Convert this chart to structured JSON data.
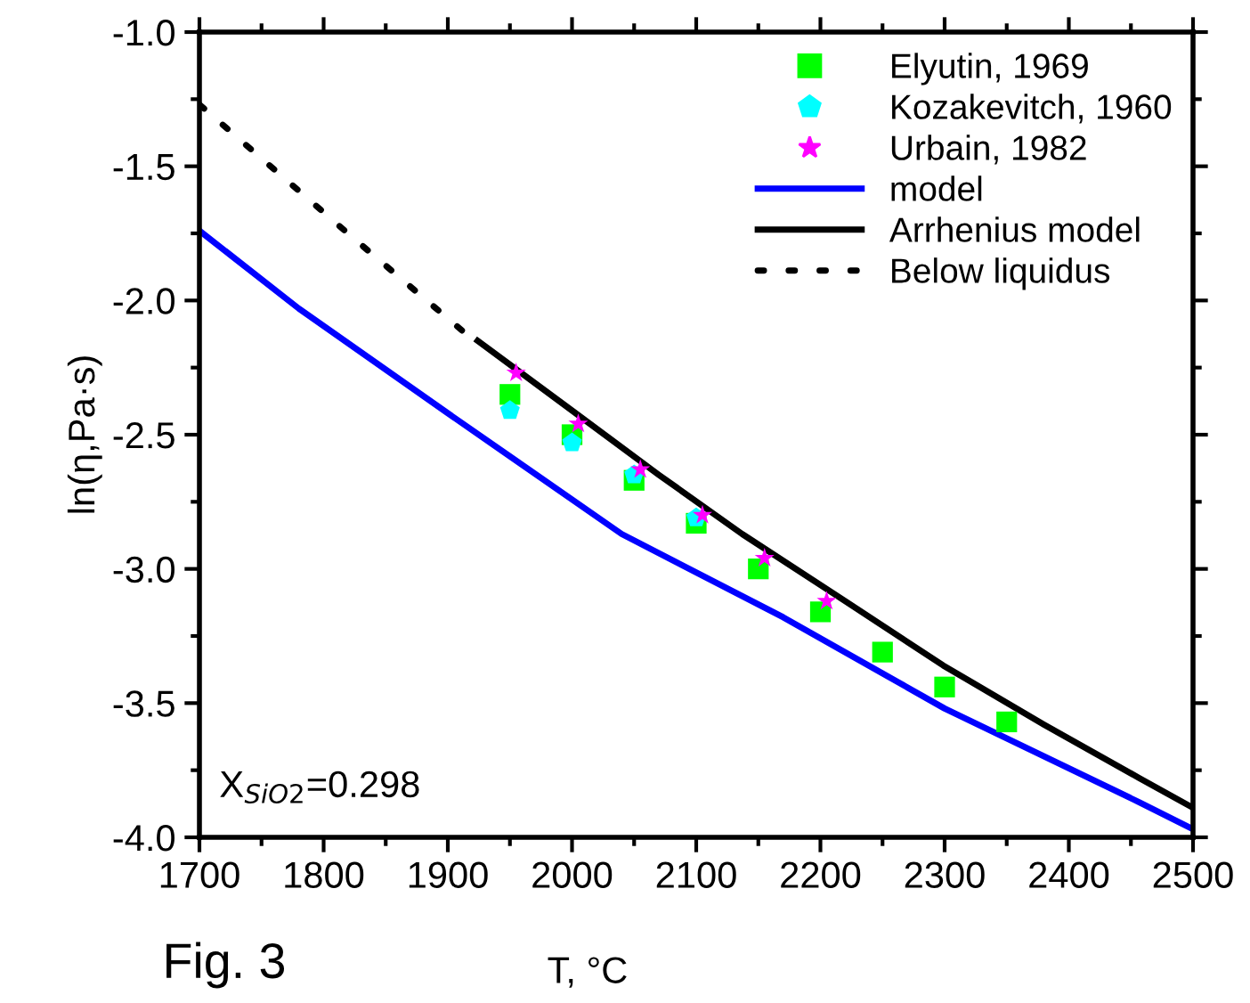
{
  "chart_data": {
    "type": "scatter",
    "xlabel": "T, °C",
    "ylabel": "ln(η,Pa·s)",
    "xlim": [
      1700,
      2500
    ],
    "ylim": [
      -4.0,
      -1.0
    ],
    "xticks": [
      1700,
      1800,
      1900,
      2000,
      2100,
      2200,
      2300,
      2400,
      2500
    ],
    "yticks": [
      {
        "value": -4.0,
        "label": "-4.0"
      },
      {
        "value": -3.5,
        "label": "-3.5"
      },
      {
        "value": -3.0,
        "label": "-3.0"
      },
      {
        "value": -2.5,
        "label": "-2.5"
      },
      {
        "value": -2.0,
        "label": "-2.0"
      },
      {
        "value": -1.5,
        "label": "-1.5"
      },
      {
        "value": -1.0,
        "label": "-1.0"
      }
    ],
    "grid": false,
    "legend": "top right",
    "annotations": [
      "X$_{SiO2}$=0.298",
      "Fig. 3"
    ],
    "series": [
      {
        "name": "Elyutin, 1969",
        "marker": "square",
        "color": "#00ff00",
        "x": [
          1950,
          2000,
          2050,
          2100,
          2150,
          2200,
          2250,
          2300,
          2350
        ],
        "values": [
          -2.35,
          -2.5,
          -2.67,
          -2.83,
          -3.0,
          -3.16,
          -3.31,
          -3.44,
          -3.57
        ]
      },
      {
        "name": "Kozakevitch, 1960",
        "color": "#00ffff",
        "x": [
          1950,
          2000,
          2050,
          2100
        ],
        "values": [
          -2.41,
          -2.53,
          -2.65,
          -2.81
        ]
      },
      {
        "name": "Urbain, 1982",
        "marker": "star",
        "color": "#ff00ff",
        "x": [
          1955,
          2005,
          2055,
          2105,
          2155,
          2205
        ],
        "values": [
          -2.27,
          -2.46,
          -2.63,
          -2.8,
          -2.96,
          -3.12
        ]
      },
      {
        "name": "model",
        "type": "line",
        "line_style": "solid",
        "color": "#0000ff",
        "x": [
          1700,
          1780,
          1900,
          2040,
          2170,
          2300,
          2457,
          2500
        ],
        "values": [
          -1.74,
          -2.03,
          -2.42,
          -2.87,
          -3.18,
          -3.52,
          -3.87,
          -3.97
        ]
      },
      {
        "name": "Arrhenius model",
        "type": "line",
        "line_style": "solid",
        "color": "#000000",
        "x": [
          1924,
          2000,
          2070,
          2137,
          2220,
          2299,
          2380,
          2457,
          2500
        ],
        "values": [
          -2.15,
          -2.41,
          -2.65,
          -2.87,
          -3.12,
          -3.36,
          -3.58,
          -3.78,
          -3.89
        ]
      },
      {
        "name": "Below liquidus",
        "type": "line",
        "line_style": "dotted",
        "color": "#000000",
        "x": [
          1700,
          1822,
          1916
        ],
        "values": [
          -1.27,
          -1.76,
          -2.13
        ]
      }
    ]
  }
}
